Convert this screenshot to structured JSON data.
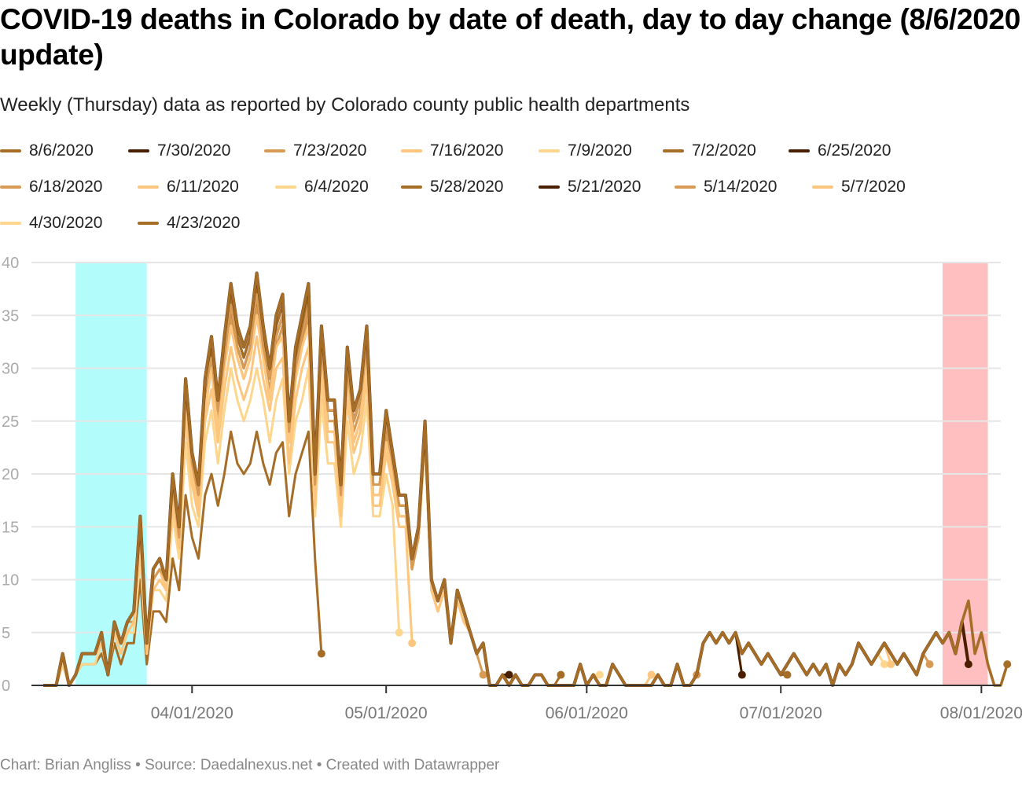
{
  "title": "COVID-19 deaths in Colorado by date of death, day to day change (8/6/2020 update)",
  "subtitle": "Weekly (Thursday) data as reported by Colorado county public health departments",
  "footer": "Chart: Brian Angliss • Source: Daedalnexus.net • Created with Datawrapper",
  "chart_data": {
    "type": "line",
    "title": "COVID-19 deaths in Colorado by date of death, day to day change (8/6/2020 update)",
    "xlabel": "",
    "ylabel": "",
    "ylim": [
      0,
      40
    ],
    "yticks": [
      0,
      5,
      10,
      15,
      20,
      25,
      30,
      35,
      40
    ],
    "x_start_date": "3/9/2020",
    "x_range_days": [
      0,
      148
    ],
    "xticks": [
      {
        "label": "04/01/2020",
        "day": 23
      },
      {
        "label": "05/01/2020",
        "day": 53
      },
      {
        "label": "06/01/2020",
        "day": 84
      },
      {
        "label": "07/01/2020",
        "day": 114
      },
      {
        "label": "08/01/2020",
        "day": 145
      }
    ],
    "grid": true,
    "legend_position": "top",
    "highlight_bands": [
      {
        "from_day": 5,
        "to_day": 16,
        "color": "#b2fdfc"
      },
      {
        "from_day": 139,
        "to_day": 146,
        "color": "#ffbec0"
      }
    ],
    "series": [
      {
        "name": "8/6/2020",
        "color": "#a66d27",
        "values": [
          0,
          0,
          0,
          3,
          0,
          1,
          3,
          3,
          3,
          5,
          1,
          6,
          4,
          6,
          7,
          16,
          4,
          11,
          12,
          10,
          20,
          15,
          29,
          22,
          19,
          29,
          33,
          27,
          33,
          38,
          34,
          32,
          34,
          39,
          34,
          30,
          35,
          37,
          25,
          32,
          35,
          38,
          20,
          34,
          27,
          27,
          19,
          32,
          26,
          28,
          34,
          20,
          20,
          26,
          22,
          18,
          18,
          12,
          15,
          25,
          10,
          8,
          10,
          4,
          9,
          7,
          5,
          3,
          4,
          0,
          0,
          1,
          0,
          1,
          0,
          0,
          1,
          1,
          0,
          0,
          0,
          0,
          0,
          2,
          0,
          1,
          0,
          0,
          2,
          1,
          0,
          0,
          0,
          0,
          0,
          1,
          0,
          0,
          2,
          0,
          0,
          1,
          4,
          5,
          4,
          5,
          4,
          5,
          3,
          4,
          3,
          2,
          3,
          2,
          1,
          2,
          3,
          2,
          1,
          2,
          1,
          2,
          0,
          2,
          1,
          2,
          4,
          3,
          2,
          3,
          4,
          3,
          2,
          3,
          2,
          1,
          3,
          4,
          5,
          4,
          5,
          3,
          6,
          8,
          3,
          5,
          2,
          0,
          0,
          2
        ]
      },
      {
        "name": "7/30/2020",
        "color": "#4a1f00",
        "values": [
          0,
          0,
          0,
          3,
          0,
          1,
          3,
          3,
          3,
          5,
          1,
          6,
          4,
          6,
          7,
          16,
          4,
          11,
          12,
          10,
          20,
          15,
          29,
          22,
          19,
          29,
          33,
          27,
          33,
          38,
          34,
          32,
          34,
          39,
          34,
          30,
          35,
          37,
          25,
          32,
          35,
          38,
          20,
          34,
          27,
          27,
          19,
          32,
          26,
          28,
          34,
          20,
          20,
          26,
          22,
          18,
          18,
          12,
          15,
          25,
          10,
          8,
          10,
          4,
          9,
          7,
          5,
          3,
          4,
          0,
          0,
          1,
          0,
          1,
          0,
          0,
          1,
          1,
          0,
          0,
          0,
          0,
          0,
          2,
          0,
          1,
          0,
          0,
          2,
          1,
          0,
          0,
          0,
          0,
          0,
          1,
          0,
          0,
          2,
          0,
          0,
          1,
          4,
          5,
          4,
          5,
          4,
          5,
          3,
          4,
          3,
          2,
          3,
          2,
          1,
          2,
          3,
          2,
          1,
          2,
          1,
          2,
          0,
          2,
          1,
          2,
          4,
          3,
          2,
          3,
          4,
          3,
          2,
          3,
          2,
          1,
          3,
          4,
          5,
          4,
          5,
          3,
          6,
          2
        ]
      }
    ]
  },
  "legend": [
    {
      "label": "8/6/2020",
      "color": "#a66d27"
    },
    {
      "label": "7/30/2020",
      "color": "#4a1f00"
    },
    {
      "label": "7/23/2020",
      "color": "#d89b55"
    },
    {
      "label": "7/16/2020",
      "color": "#fdc67f"
    },
    {
      "label": "7/9/2020",
      "color": "#fdd68d"
    },
    {
      "label": "7/2/2020",
      "color": "#a66d27"
    },
    {
      "label": "6/25/2020",
      "color": "#4a1f00"
    },
    {
      "label": "6/18/2020",
      "color": "#d89b55"
    },
    {
      "label": "6/11/2020",
      "color": "#fdc67f"
    },
    {
      "label": "6/4/2020",
      "color": "#fdd68d"
    },
    {
      "label": "5/28/2020",
      "color": "#a66d27"
    },
    {
      "label": "5/21/2020",
      "color": "#4a1f00"
    },
    {
      "label": "5/14/2020",
      "color": "#d89b55"
    },
    {
      "label": "5/7/2020",
      "color": "#fdc67f"
    },
    {
      "label": "4/30/2020",
      "color": "#fdd68d"
    },
    {
      "label": "4/23/2020",
      "color": "#a66d27"
    }
  ]
}
